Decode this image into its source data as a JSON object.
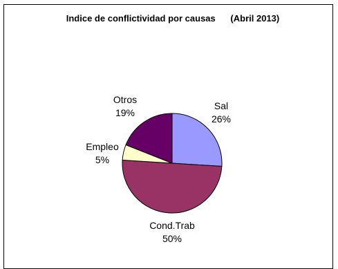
{
  "chart_data": {
    "type": "pie",
    "title": "Indice de conflictividad por causas      (Abril 2013)",
    "slices": [
      {
        "name": "Sal",
        "value": 26,
        "pct_label": "26%",
        "color": "#9999ff"
      },
      {
        "name": "Cond.Trab",
        "value": 50,
        "pct_label": "50%",
        "color": "#993366"
      },
      {
        "name": "Empleo",
        "value": 5,
        "pct_label": "5%",
        "color": "#ffffcc"
      },
      {
        "name": "Otros",
        "value": 19,
        "pct_label": "19%",
        "color": "#660066"
      }
    ],
    "legend": false,
    "slice_border_color": "#000000"
  }
}
